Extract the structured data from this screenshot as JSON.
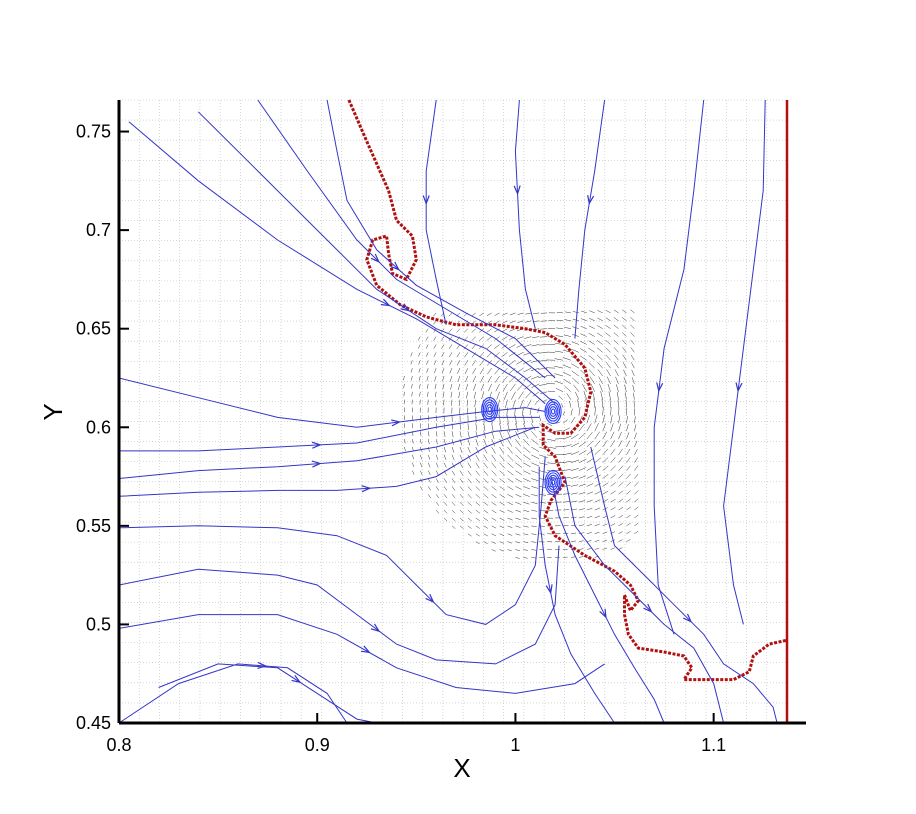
{
  "chart_data": {
    "type": "line",
    "title": "",
    "xlabel": "X",
    "ylabel": "Y",
    "xlim": [
      0.8,
      1.137
    ],
    "ylim": [
      0.45,
      0.766
    ],
    "xticks": [
      0.8,
      0.9,
      1.0,
      1.1
    ],
    "xtick_labels": [
      "0.8",
      "0.9",
      "1",
      "1.1"
    ],
    "yticks": [
      0.45,
      0.5,
      0.55,
      0.6,
      0.65,
      0.7,
      0.75
    ],
    "ytick_labels": [
      "0.45",
      "0.5",
      "0.55",
      "0.6",
      "0.65",
      "0.7",
      "0.75"
    ],
    "grid": false,
    "legend": "none",
    "colors": {
      "interface": "#b01010",
      "streamline": "#3535c8",
      "vector": "#000000",
      "vortex": "#2a3cff"
    },
    "series": [
      {
        "kind": "interface",
        "points": [
          [
            0.916,
            0.766
          ],
          [
            0.925,
            0.745
          ],
          [
            0.936,
            0.72
          ],
          [
            0.94,
            0.705
          ],
          [
            0.948,
            0.697
          ],
          [
            0.95,
            0.685
          ],
          [
            0.945,
            0.675
          ],
          [
            0.938,
            0.678
          ],
          [
            0.936,
            0.688
          ],
          [
            0.935,
            0.697
          ],
          [
            0.928,
            0.695
          ],
          [
            0.925,
            0.685
          ],
          [
            0.93,
            0.672
          ],
          [
            0.942,
            0.662
          ],
          [
            0.955,
            0.656
          ],
          [
            0.97,
            0.652
          ],
          [
            0.99,
            0.652
          ],
          [
            1.005,
            0.65
          ],
          [
            1.015,
            0.648
          ],
          [
            1.025,
            0.642
          ],
          [
            1.035,
            0.63
          ],
          [
            1.038,
            0.618
          ],
          [
            1.035,
            0.605
          ],
          [
            1.028,
            0.597
          ],
          [
            1.02,
            0.597
          ],
          [
            1.014,
            0.601
          ],
          [
            1.014,
            0.591
          ],
          [
            1.02,
            0.585
          ],
          [
            1.025,
            0.572
          ],
          [
            1.018,
            0.563
          ],
          [
            1.015,
            0.555
          ],
          [
            1.02,
            0.545
          ],
          [
            1.035,
            0.535
          ],
          [
            1.05,
            0.527
          ],
          [
            1.058,
            0.52
          ],
          [
            1.062,
            0.512
          ],
          [
            1.058,
            0.507
          ],
          [
            1.055,
            0.515
          ],
          [
            1.055,
            0.505
          ],
          [
            1.057,
            0.495
          ],
          [
            1.062,
            0.488
          ],
          [
            1.075,
            0.486
          ],
          [
            1.085,
            0.484
          ],
          [
            1.089,
            0.478
          ],
          [
            1.085,
            0.472
          ],
          [
            1.095,
            0.472
          ],
          [
            1.11,
            0.472
          ],
          [
            1.118,
            0.476
          ],
          [
            1.12,
            0.484
          ],
          [
            1.128,
            0.49
          ],
          [
            1.137,
            0.492
          ]
        ]
      },
      {
        "kind": "interface",
        "points": [
          [
            1.137,
            0.45
          ],
          [
            1.137,
            0.766
          ]
        ]
      },
      {
        "kind": "streamline",
        "points": [
          [
            0.805,
            0.755
          ],
          [
            0.84,
            0.725
          ],
          [
            0.88,
            0.695
          ],
          [
            0.92,
            0.67
          ],
          [
            0.95,
            0.655
          ],
          [
            0.975,
            0.64
          ],
          [
            1.0,
            0.625
          ],
          [
            1.015,
            0.612
          ]
        ]
      },
      {
        "kind": "streamline",
        "points": [
          [
            0.84,
            0.76
          ],
          [
            0.87,
            0.73
          ],
          [
            0.9,
            0.7
          ],
          [
            0.93,
            0.67
          ],
          [
            0.96,
            0.65
          ],
          [
            0.985,
            0.64
          ],
          [
            1.005,
            0.625
          ],
          [
            1.02,
            0.612
          ]
        ]
      },
      {
        "kind": "streamline",
        "points": [
          [
            0.87,
            0.766
          ],
          [
            0.895,
            0.73
          ],
          [
            0.92,
            0.695
          ],
          [
            0.94,
            0.675
          ],
          [
            0.965,
            0.66
          ],
          [
            0.99,
            0.645
          ],
          [
            1.015,
            0.625
          ]
        ]
      },
      {
        "kind": "streamline",
        "points": [
          [
            0.905,
            0.766
          ],
          [
            0.91,
            0.74
          ],
          [
            0.915,
            0.715
          ],
          [
            0.93,
            0.69
          ],
          [
            0.95,
            0.672
          ],
          [
            0.975,
            0.658
          ],
          [
            1.0,
            0.645
          ],
          [
            1.02,
            0.625
          ]
        ]
      },
      {
        "kind": "streamline",
        "points": [
          [
            0.8,
            0.625
          ],
          [
            0.84,
            0.615
          ],
          [
            0.88,
            0.605
          ],
          [
            0.92,
            0.6
          ],
          [
            0.96,
            0.605
          ],
          [
            0.985,
            0.608
          ],
          [
            1.005,
            0.61
          ],
          [
            1.015,
            0.608
          ]
        ]
      },
      {
        "kind": "streamline",
        "points": [
          [
            0.8,
            0.588
          ],
          [
            0.84,
            0.588
          ],
          [
            0.88,
            0.59
          ],
          [
            0.92,
            0.592
          ],
          [
            0.96,
            0.6
          ],
          [
            0.99,
            0.605
          ],
          [
            1.012,
            0.605
          ]
        ]
      },
      {
        "kind": "streamline",
        "points": [
          [
            0.8,
            0.574
          ],
          [
            0.84,
            0.578
          ],
          [
            0.88,
            0.58
          ],
          [
            0.92,
            0.583
          ],
          [
            0.96,
            0.59
          ],
          [
            0.99,
            0.598
          ],
          [
            1.012,
            0.6
          ]
        ]
      },
      {
        "kind": "streamline",
        "points": [
          [
            0.8,
            0.565
          ],
          [
            0.84,
            0.567
          ],
          [
            0.88,
            0.568
          ],
          [
            0.91,
            0.568
          ],
          [
            0.94,
            0.57
          ],
          [
            0.96,
            0.575
          ],
          [
            0.985,
            0.59
          ],
          [
            1.01,
            0.6
          ]
        ]
      },
      {
        "kind": "streamline",
        "points": [
          [
            0.8,
            0.549
          ],
          [
            0.84,
            0.55
          ],
          [
            0.88,
            0.549
          ],
          [
            0.91,
            0.545
          ],
          [
            0.935,
            0.535
          ],
          [
            0.95,
            0.52
          ],
          [
            0.965,
            0.505
          ],
          [
            0.985,
            0.5
          ],
          [
            1.0,
            0.51
          ],
          [
            1.01,
            0.53
          ],
          [
            1.013,
            0.56
          ],
          [
            1.015,
            0.585
          ]
        ]
      },
      {
        "kind": "streamline",
        "points": [
          [
            0.8,
            0.52
          ],
          [
            0.84,
            0.528
          ],
          [
            0.88,
            0.525
          ],
          [
            0.9,
            0.52
          ],
          [
            0.92,
            0.505
          ],
          [
            0.94,
            0.49
          ],
          [
            0.96,
            0.482
          ],
          [
            0.99,
            0.48
          ],
          [
            1.01,
            0.49
          ],
          [
            1.02,
            0.51
          ],
          [
            1.022,
            0.54
          ]
        ]
      },
      {
        "kind": "streamline",
        "points": [
          [
            0.8,
            0.498
          ],
          [
            0.84,
            0.505
          ],
          [
            0.88,
            0.505
          ],
          [
            0.91,
            0.495
          ],
          [
            0.94,
            0.478
          ],
          [
            0.97,
            0.468
          ],
          [
            1.0,
            0.465
          ],
          [
            1.03,
            0.47
          ],
          [
            1.045,
            0.48
          ]
        ]
      },
      {
        "kind": "streamline",
        "points": [
          [
            0.82,
            0.468
          ],
          [
            0.85,
            0.48
          ],
          [
            0.88,
            0.478
          ],
          [
            0.9,
            0.465
          ],
          [
            0.92,
            0.452
          ],
          [
            0.93,
            0.45
          ]
        ]
      },
      {
        "kind": "streamline",
        "points": [
          [
            0.8,
            0.45
          ],
          [
            0.83,
            0.47
          ],
          [
            0.86,
            0.48
          ],
          [
            0.885,
            0.478
          ],
          [
            0.905,
            0.465
          ],
          [
            0.915,
            0.45
          ]
        ]
      },
      {
        "kind": "streamline",
        "points": [
          [
            0.96,
            0.766
          ],
          [
            0.955,
            0.73
          ],
          [
            0.955,
            0.7
          ],
          [
            0.96,
            0.675
          ],
          [
            0.965,
            0.652
          ]
        ]
      },
      {
        "kind": "streamline",
        "points": [
          [
            1.002,
            0.766
          ],
          [
            1.0,
            0.74
          ],
          [
            1.002,
            0.7
          ],
          [
            1.005,
            0.67
          ],
          [
            1.01,
            0.65
          ]
        ]
      },
      {
        "kind": "streamline",
        "points": [
          [
            1.045,
            0.766
          ],
          [
            1.04,
            0.73
          ],
          [
            1.035,
            0.7
          ],
          [
            1.032,
            0.67
          ],
          [
            1.03,
            0.645
          ]
        ]
      },
      {
        "kind": "streamline",
        "points": [
          [
            1.095,
            0.766
          ],
          [
            1.09,
            0.72
          ],
          [
            1.085,
            0.68
          ],
          [
            1.075,
            0.64
          ],
          [
            1.07,
            0.6
          ],
          [
            1.07,
            0.56
          ],
          [
            1.072,
            0.52
          ],
          [
            1.08,
            0.495
          ]
        ]
      },
      {
        "kind": "streamline",
        "points": [
          [
            1.126,
            0.766
          ],
          [
            1.125,
            0.72
          ],
          [
            1.12,
            0.68
          ],
          [
            1.115,
            0.64
          ],
          [
            1.11,
            0.6
          ],
          [
            1.105,
            0.56
          ],
          [
            1.11,
            0.52
          ],
          [
            1.115,
            0.5
          ]
        ]
      },
      {
        "kind": "streamline",
        "points": [
          [
            1.038,
            0.59
          ],
          [
            1.045,
            0.56
          ],
          [
            1.05,
            0.54
          ],
          [
            1.065,
            0.525
          ],
          [
            1.08,
            0.51
          ],
          [
            1.095,
            0.495
          ],
          [
            1.105,
            0.48
          ],
          [
            1.12,
            0.47
          ],
          [
            1.13,
            0.458
          ],
          [
            1.132,
            0.45
          ]
        ]
      },
      {
        "kind": "streamline",
        "points": [
          [
            1.025,
            0.575
          ],
          [
            1.03,
            0.55
          ],
          [
            1.045,
            0.53
          ],
          [
            1.06,
            0.515
          ],
          [
            1.075,
            0.5
          ],
          [
            1.09,
            0.488
          ],
          [
            1.1,
            0.47
          ],
          [
            1.105,
            0.45
          ]
        ]
      },
      {
        "kind": "streamline",
        "points": [
          [
            1.018,
            0.575
          ],
          [
            1.022,
            0.555
          ],
          [
            1.03,
            0.535
          ],
          [
            1.04,
            0.515
          ],
          [
            1.05,
            0.495
          ],
          [
            1.06,
            0.478
          ],
          [
            1.07,
            0.462
          ],
          [
            1.075,
            0.45
          ]
        ]
      },
      {
        "kind": "streamline",
        "points": [
          [
            1.012,
            0.58
          ],
          [
            1.012,
            0.555
          ],
          [
            1.015,
            0.53
          ],
          [
            1.02,
            0.505
          ],
          [
            1.028,
            0.485
          ],
          [
            1.04,
            0.465
          ],
          [
            1.05,
            0.45
          ]
        ]
      }
    ],
    "vortices": [
      {
        "x": 0.987,
        "y": 0.609
      },
      {
        "x": 1.019,
        "y": 0.608
      },
      {
        "x": 1.019,
        "y": 0.572
      }
    ]
  }
}
